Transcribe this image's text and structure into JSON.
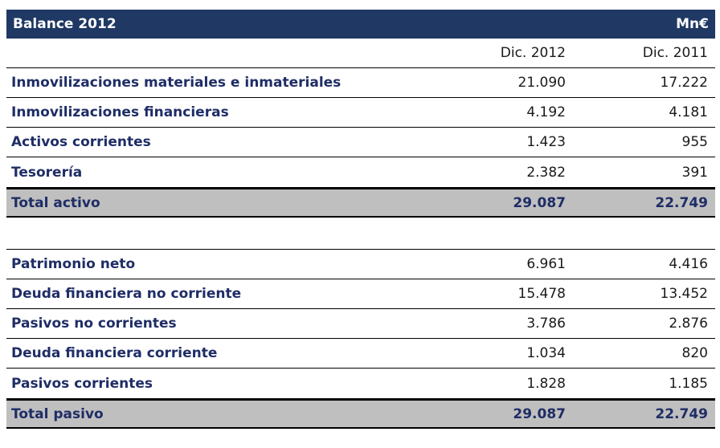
{
  "header": {
    "title": "Balance 2012",
    "unit": "Mn€"
  },
  "columns": {
    "c1": "Dic. 2012",
    "c2": "Dic. 2011"
  },
  "activo": [
    {
      "label": "Inmovilizaciones materiales e inmateriales",
      "v1": "21.090",
      "v2": "17.222"
    },
    {
      "label": "Inmovilizaciones financieras",
      "v1": "4.192",
      "v2": "4.181"
    },
    {
      "label": "Activos corrientes",
      "v1": "1.423",
      "v2": "955"
    },
    {
      "label": "Tesorería",
      "v1": "2.382",
      "v2": "391"
    }
  ],
  "total_activo": {
    "label": "Total activo",
    "v1": "29.087",
    "v2": "22.749"
  },
  "pasivo": [
    {
      "label": "Patrimonio neto",
      "v1": "6.961",
      "v2": "4.416"
    },
    {
      "label": "Deuda financiera no corriente",
      "v1": "15.478",
      "v2": "13.452"
    },
    {
      "label": "Pasivos no corrientes",
      "v1": "3.786",
      "v2": "2.876"
    },
    {
      "label": "Deuda financiera corriente",
      "v1": "1.034",
      "v2": "820"
    },
    {
      "label": "Pasivos corrientes",
      "v1": "1.828",
      "v2": "1.185"
    }
  ],
  "total_pasivo": {
    "label": "Total pasivo",
    "v1": "29.087",
    "v2": "22.749"
  }
}
